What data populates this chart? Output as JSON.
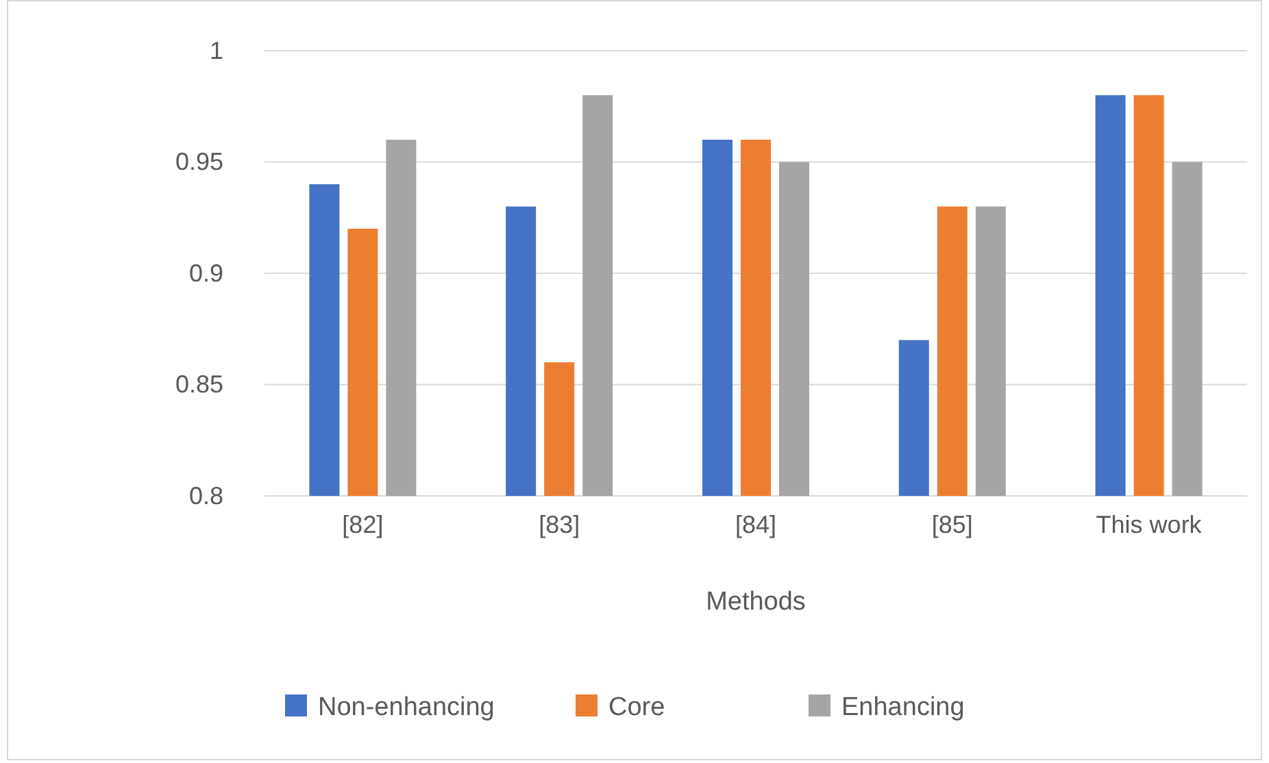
{
  "chart_data": {
    "type": "bar",
    "xlabel": "Methods",
    "categories": [
      "[82]",
      "[83]",
      "[84]",
      "[85]",
      "This work"
    ],
    "series": [
      {
        "name": "Non-enhancing",
        "color": "#4472c4",
        "values": [
          0.94,
          0.93,
          0.96,
          0.87,
          0.98
        ]
      },
      {
        "name": "Core",
        "color": "#ed7d31",
        "values": [
          0.92,
          0.86,
          0.96,
          0.93,
          0.98
        ]
      },
      {
        "name": "Enhancing",
        "color": "#a5a5a5",
        "values": [
          0.96,
          0.98,
          0.95,
          0.93,
          0.95
        ]
      }
    ],
    "ylim": [
      0.8,
      1
    ],
    "yticks": [
      0.8,
      0.85,
      0.9,
      0.95,
      1
    ],
    "grid": "y",
    "legend": "bottom"
  }
}
